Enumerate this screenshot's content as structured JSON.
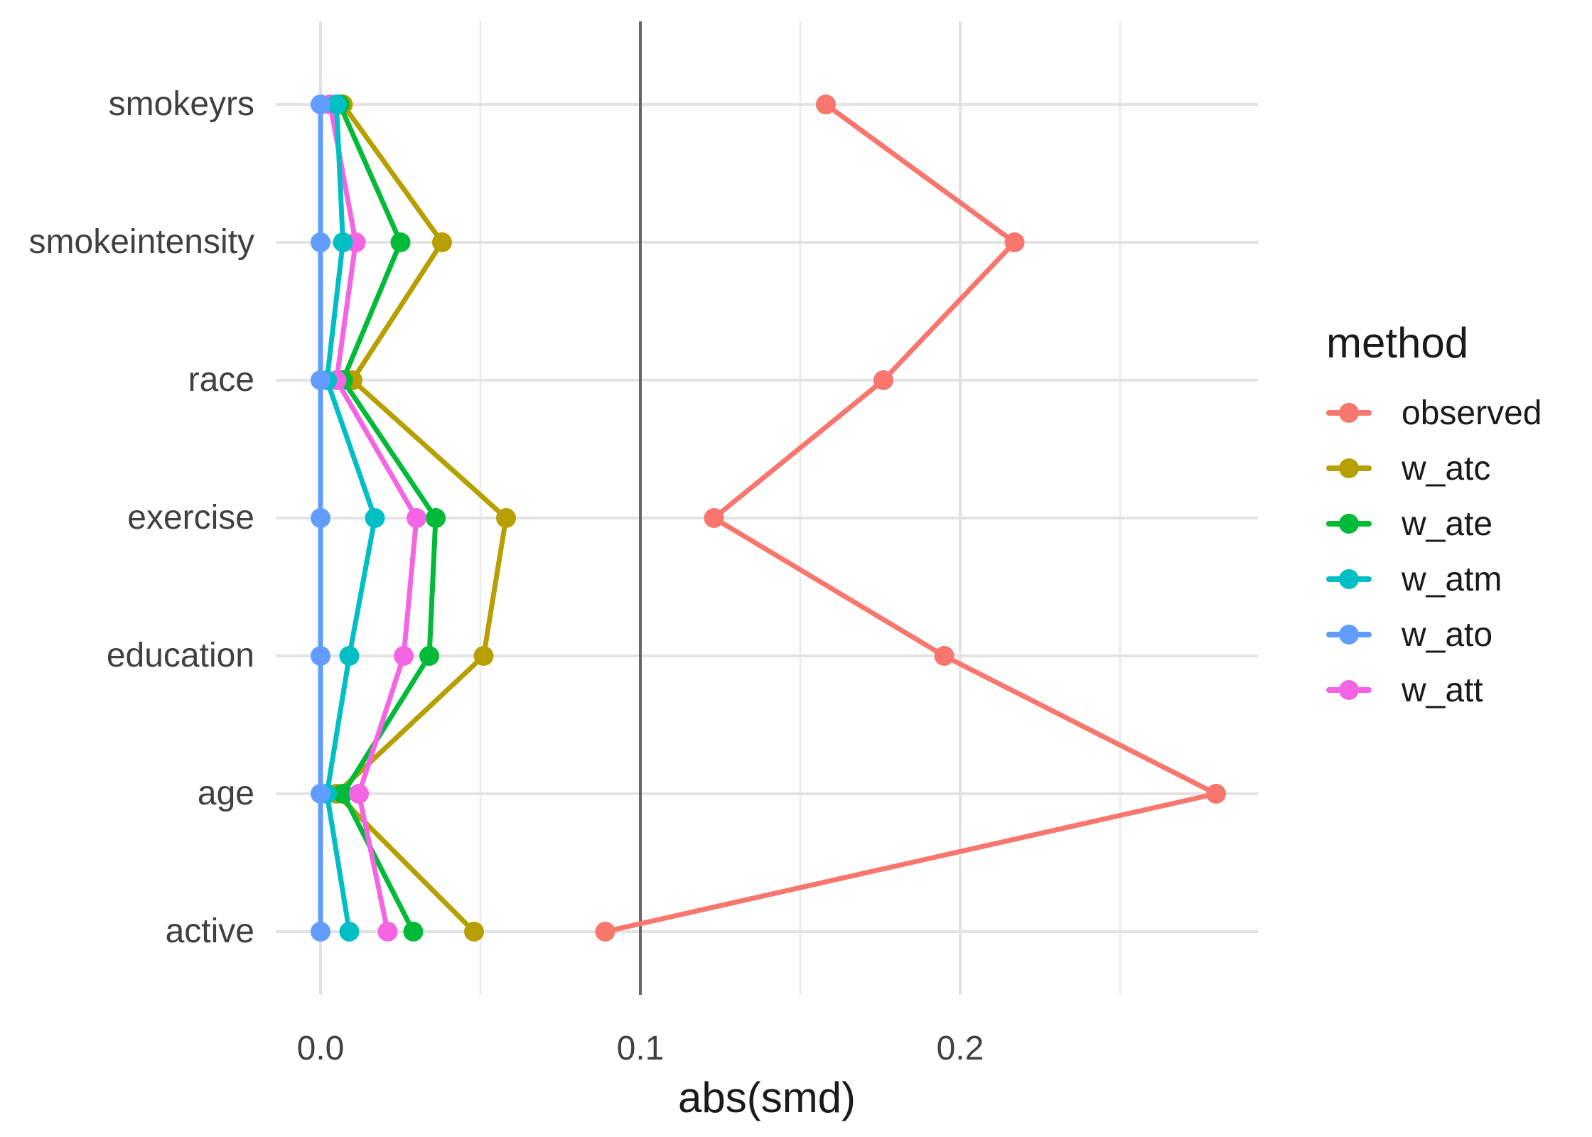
{
  "chart_data": {
    "type": "line",
    "orientation": "horizontal",
    "title": "",
    "xlabel": "abs(smd)",
    "ylabel": "",
    "grid": "on",
    "categories": [
      "smokeyrs",
      "smokeintensity",
      "race",
      "exercise",
      "education",
      "age",
      "active"
    ],
    "x_axis": {
      "ticks": [
        0.0,
        0.1,
        0.2
      ],
      "tick_labels": [
        "0.0",
        "0.1",
        "0.2"
      ],
      "minor_ticks": [
        0.05,
        0.15,
        0.25
      ],
      "range": [
        -0.014,
        0.293
      ],
      "reference_line": 0.1
    },
    "legend": {
      "title": "method",
      "position": "right"
    },
    "colors": {
      "grid_major": "#E3E3E3",
      "grid_minor": "#ECECEC",
      "reference_line": "#666666",
      "axis_text": "#404040",
      "title_text": "#1a1a1a"
    },
    "series": [
      {
        "name": "observed",
        "color": "#F8766D",
        "values": [
          0.158,
          0.217,
          0.176,
          0.123,
          0.195,
          0.28,
          0.089
        ]
      },
      {
        "name": "w_atc",
        "color": "#B79F00",
        "values": [
          0.007,
          0.038,
          0.01,
          0.058,
          0.051,
          0.005,
          0.048
        ]
      },
      {
        "name": "w_ate",
        "color": "#00BA38",
        "values": [
          0.006,
          0.025,
          0.007,
          0.036,
          0.034,
          0.007,
          0.029
        ]
      },
      {
        "name": "w_atm",
        "color": "#00BFC4",
        "values": [
          0.005,
          0.007,
          0.002,
          0.017,
          0.009,
          0.002,
          0.009
        ]
      },
      {
        "name": "w_ato",
        "color": "#619CFF",
        "values": [
          0.0,
          0.0,
          0.0,
          0.0,
          0.0,
          0.0,
          0.0
        ]
      },
      {
        "name": "w_att",
        "color": "#F564E3",
        "values": [
          0.003,
          0.011,
          0.005,
          0.03,
          0.026,
          0.012,
          0.021
        ]
      }
    ]
  }
}
